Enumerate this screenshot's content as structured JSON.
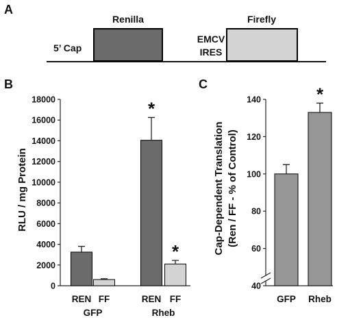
{
  "panel_a": {
    "letter": "A",
    "cap_label": "5’ Cap",
    "renilla_label": "Renilla",
    "ires_label_line1": "EMCV",
    "ires_label_line2": "IRES",
    "firefly_label": "Firefly",
    "renilla_color": "#6b6b6b",
    "firefly_color": "#d3d3d3"
  },
  "chart_data": [
    {
      "panel": "B",
      "type": "bar",
      "ylabel": "RLU / mg Protein",
      "ylim": [
        0,
        18000
      ],
      "yticks": [
        0,
        2000,
        4000,
        6000,
        8000,
        10000,
        12000,
        14000,
        16000,
        18000
      ],
      "groups": [
        "GFP",
        "Rheb"
      ],
      "categories": [
        "REN",
        "FF"
      ],
      "bars": [
        {
          "group": "GFP",
          "category": "REN",
          "value": 3250,
          "error": 550,
          "color": "#6b6b6b",
          "star": ""
        },
        {
          "group": "GFP",
          "category": "FF",
          "value": 600,
          "error": 80,
          "color": "#d3d3d3",
          "star": ""
        },
        {
          "group": "Rheb",
          "category": "REN",
          "value": 14050,
          "error": 2200,
          "color": "#6b6b6b",
          "star": "*"
        },
        {
          "group": "Rheb",
          "category": "FF",
          "value": 2100,
          "error": 350,
          "color": "#d3d3d3",
          "star": "*"
        }
      ],
      "grid": false,
      "legend": "none"
    },
    {
      "panel": "C",
      "type": "bar",
      "ylabel_line1": "Cap-Dependent Translation",
      "ylabel_line2": "(Ren / FF -  % of Control)",
      "ylim": [
        40,
        140
      ],
      "yticks": [
        40,
        60,
        80,
        100,
        120,
        140
      ],
      "axis_break": true,
      "categories": [
        "GFP",
        "Rheb"
      ],
      "bars": [
        {
          "category": "GFP",
          "value": 100,
          "error": 5,
          "color": "#969696",
          "star": ""
        },
        {
          "category": "Rheb",
          "value": 133,
          "error": 5,
          "color": "#969696",
          "star": "*"
        }
      ],
      "grid": false,
      "legend": "none"
    }
  ]
}
